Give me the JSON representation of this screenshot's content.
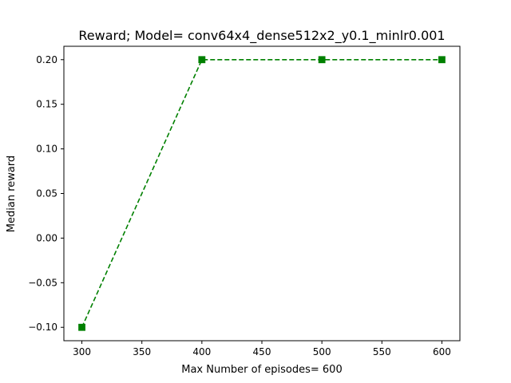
{
  "chart_data": {
    "type": "line",
    "title": "Reward; Model= conv64x4_dense512x2_y0.1_minlr0.001",
    "xlabel": "Max Number of episodes= 600",
    "ylabel": "Median reward",
    "x": [
      300,
      400,
      500,
      600
    ],
    "xlim": [
      285,
      615
    ],
    "ylim": [
      -0.115,
      0.215
    ],
    "xticks": [
      300,
      350,
      400,
      450,
      500,
      550,
      600
    ],
    "yticks": [
      -0.1,
      -0.05,
      0.0,
      0.05,
      0.1,
      0.15,
      0.2
    ],
    "xtick_labels": [
      "300",
      "350",
      "400",
      "450",
      "500",
      "550",
      "600"
    ],
    "ytick_labels": [
      "−0.10",
      "−0.05",
      "0.00",
      "0.05",
      "0.10",
      "0.15",
      "0.20"
    ],
    "grid": false,
    "series": [
      {
        "name": "Median reward",
        "values": [
          -0.1,
          0.2,
          0.2,
          0.2
        ],
        "color": "#008000",
        "line_style": "dashed",
        "marker": "square"
      }
    ]
  }
}
